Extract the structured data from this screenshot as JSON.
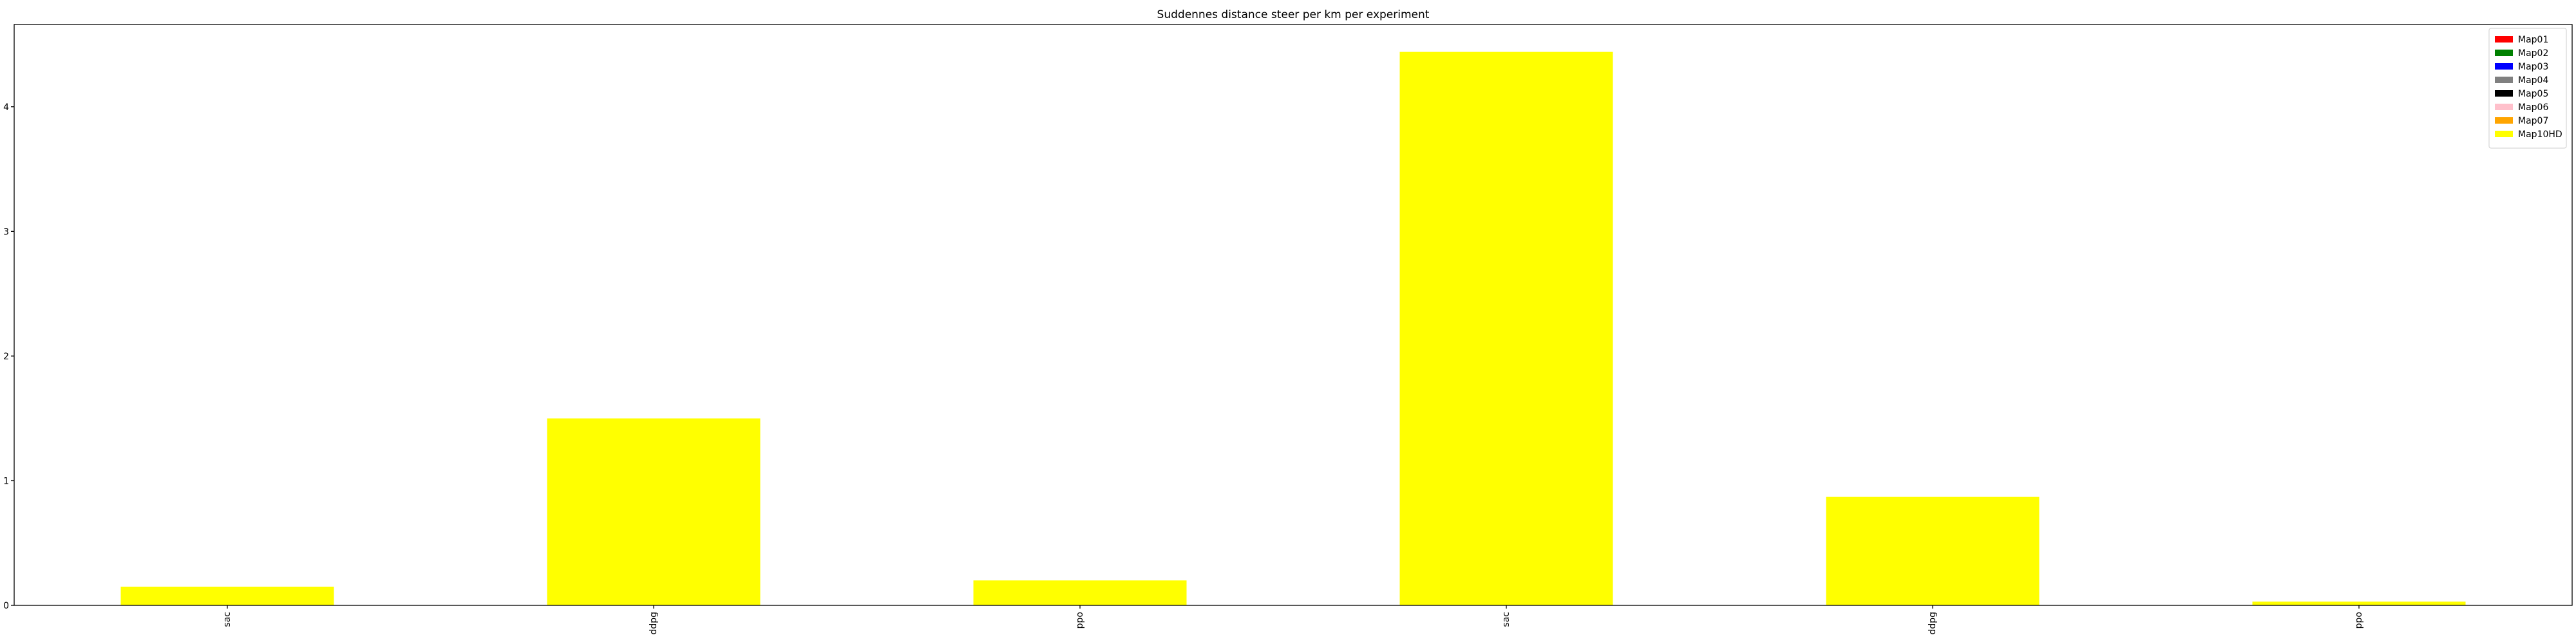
{
  "chart_data": {
    "type": "bar",
    "title": "Suddennes distance steer per km per experiment",
    "xlabel": "",
    "ylabel": "",
    "categories": [
      "sac",
      "ddpg",
      "ppo",
      "sac",
      "ddpg",
      "ppo"
    ],
    "series": [
      {
        "name": "Map01",
        "color": "#ff0000",
        "values": [
          0,
          0,
          0,
          0,
          0,
          0
        ]
      },
      {
        "name": "Map02",
        "color": "#008000",
        "values": [
          0,
          0,
          0,
          0,
          0,
          0
        ]
      },
      {
        "name": "Map03",
        "color": "#0000ff",
        "values": [
          0,
          0,
          0,
          0,
          0,
          0
        ]
      },
      {
        "name": "Map04",
        "color": "#808080",
        "values": [
          0,
          0,
          0,
          0,
          0,
          0
        ]
      },
      {
        "name": "Map05",
        "color": "#000000",
        "values": [
          0,
          0,
          0,
          0,
          0,
          0
        ]
      },
      {
        "name": "Map06",
        "color": "#ffc0cb",
        "values": [
          0,
          0,
          0,
          0,
          0,
          0
        ]
      },
      {
        "name": "Map07",
        "color": "#ffa500",
        "values": [
          0,
          0,
          0,
          0,
          0,
          0
        ]
      },
      {
        "name": "Map10HD",
        "color": "#ffff00",
        "values": [
          0.15,
          1.5,
          0.2,
          4.44,
          0.87,
          0.03
        ]
      }
    ],
    "ylim": [
      0,
      4.66
    ],
    "yticks": [
      0,
      1,
      2,
      3,
      4
    ],
    "grid": false,
    "legend_position": "top-right"
  }
}
